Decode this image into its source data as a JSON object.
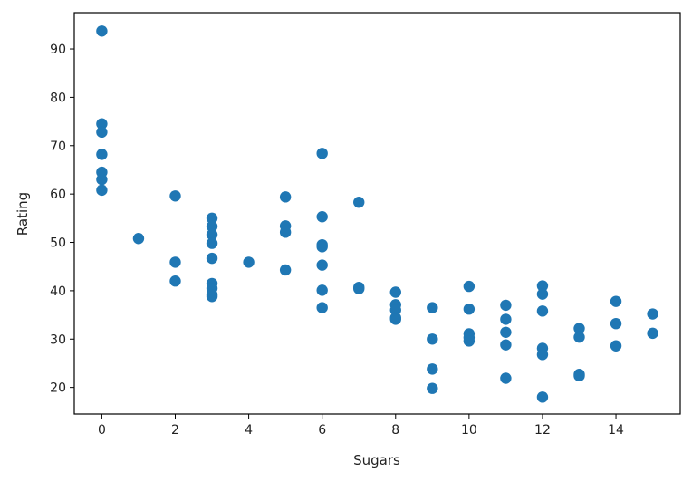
{
  "chart_data": {
    "type": "scatter",
    "title": "",
    "xlabel": "Sugars",
    "ylabel": "Rating",
    "xlim": [
      -0.75,
      15.75
    ],
    "ylim": [
      14.5,
      97.5
    ],
    "xticks": [
      0,
      2,
      4,
      6,
      8,
      10,
      12,
      14
    ],
    "yticks": [
      20,
      30,
      40,
      50,
      60,
      70,
      80,
      90
    ],
    "grid": false,
    "legend": "none",
    "marker_color": "#1f77b4",
    "series": [
      {
        "points": [
          [
            0,
            93.7
          ],
          [
            0,
            74.5
          ],
          [
            0,
            72.8
          ],
          [
            0,
            68.2
          ],
          [
            0,
            64.5
          ],
          [
            0,
            63.0
          ],
          [
            0,
            60.8
          ],
          [
            1,
            50.8
          ],
          [
            2,
            59.6
          ],
          [
            2,
            45.9
          ],
          [
            2,
            42.0
          ],
          [
            3,
            55.0
          ],
          [
            3,
            53.3
          ],
          [
            3,
            51.6
          ],
          [
            3,
            49.8
          ],
          [
            3,
            46.7
          ],
          [
            3,
            41.5
          ],
          [
            3,
            40.5
          ],
          [
            3,
            39.2
          ],
          [
            3,
            38.8
          ],
          [
            4,
            45.9
          ],
          [
            5,
            59.4
          ],
          [
            5,
            53.4
          ],
          [
            5,
            52.1
          ],
          [
            5,
            44.3
          ],
          [
            6,
            68.4
          ],
          [
            6,
            55.3
          ],
          [
            6,
            49.5
          ],
          [
            6,
            49.1
          ],
          [
            6,
            45.3
          ],
          [
            6,
            40.1
          ],
          [
            6,
            36.5
          ],
          [
            7,
            58.3
          ],
          [
            7,
            40.7
          ],
          [
            7,
            40.4
          ],
          [
            8,
            39.7
          ],
          [
            8,
            37.1
          ],
          [
            8,
            36.0
          ],
          [
            8,
            34.4
          ],
          [
            8,
            34.1
          ],
          [
            9,
            36.5
          ],
          [
            9,
            30.0
          ],
          [
            9,
            23.8
          ],
          [
            9,
            19.8
          ],
          [
            10,
            40.9
          ],
          [
            10,
            36.2
          ],
          [
            10,
            31.1
          ],
          [
            10,
            30.3
          ],
          [
            10,
            29.6
          ],
          [
            11,
            37.0
          ],
          [
            11,
            34.1
          ],
          [
            11,
            31.4
          ],
          [
            11,
            28.8
          ],
          [
            11,
            21.9
          ],
          [
            12,
            41.0
          ],
          [
            12,
            39.3
          ],
          [
            12,
            35.8
          ],
          [
            12,
            28.1
          ],
          [
            12,
            26.8
          ],
          [
            12,
            18.0
          ],
          [
            13,
            32.2
          ],
          [
            13,
            30.4
          ],
          [
            13,
            22.7
          ],
          [
            13,
            22.4
          ],
          [
            14,
            37.8
          ],
          [
            14,
            33.2
          ],
          [
            14,
            28.6
          ],
          [
            15,
            35.2
          ],
          [
            15,
            31.2
          ]
        ]
      }
    ]
  }
}
